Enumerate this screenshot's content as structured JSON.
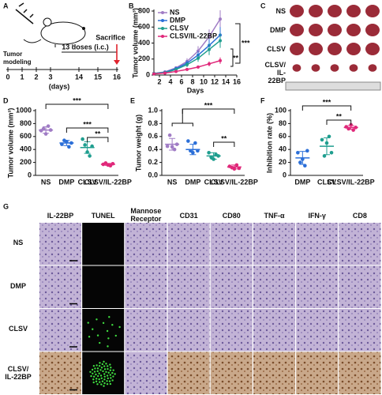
{
  "panels": {
    "A": "A",
    "C": "C",
    "G": "G"
  },
  "schematic": {
    "tumor_label": "Tumor\nmodeling",
    "days": [
      0,
      1,
      2,
      3,
      14,
      15,
      16
    ],
    "days_unit": "(days)",
    "doses": "13 doses (i.c.)",
    "end": "Sacrifice"
  },
  "photos": {
    "rows": [
      "NS",
      "DMP",
      "CLSV",
      "CLSV/\nIL-22BP"
    ]
  },
  "staining": {
    "columns": [
      "IL-22BP",
      "TUNEL",
      "Mannose\nReceptor",
      "CD31",
      "CD80",
      "TNF-α",
      "IFN-γ",
      "CD8"
    ],
    "rows": [
      "NS",
      "DMP",
      "CLSV",
      "CLSV/\nIL-22BP"
    ]
  },
  "chart_data": [
    {
      "type": "line",
      "panel": "B",
      "x_label": "Days",
      "y_label": "Tumor volume (mm³)",
      "x": [
        1,
        3,
        5,
        7,
        9,
        11,
        13
      ],
      "xlim": [
        1,
        16
      ],
      "xticks": [
        2,
        4,
        6,
        8,
        10,
        12,
        14,
        16
      ],
      "ylim": [
        0,
        800
      ],
      "yticks": [
        0,
        200,
        400,
        600,
        800
      ],
      "series": [
        {
          "name": "NS",
          "color": "#a07cc5",
          "values": [
            20,
            40,
            90,
            170,
            300,
            480,
            700
          ],
          "errors": [
            5,
            10,
            20,
            40,
            60,
            90,
            110
          ]
        },
        {
          "name": "DMP",
          "color": "#2b6fd8",
          "values": [
            20,
            35,
            80,
            150,
            250,
            370,
            500
          ],
          "errors": [
            5,
            10,
            20,
            35,
            50,
            80,
            100
          ]
        },
        {
          "name": "CLSV",
          "color": "#1f9e8f",
          "values": [
            20,
            30,
            70,
            130,
            210,
            320,
            430
          ],
          "errors": [
            5,
            8,
            15,
            30,
            45,
            70,
            90
          ]
        },
        {
          "name": "CLSV/IL-22BP",
          "color": "#e0287a",
          "values": [
            15,
            25,
            45,
            70,
            100,
            140,
            180
          ],
          "errors": [
            4,
            6,
            10,
            15,
            20,
            30,
            40
          ]
        }
      ],
      "annotations": [
        "***",
        "**"
      ]
    },
    {
      "type": "dot",
      "panel": "D",
      "y_label": "Tumor volume (mm³)",
      "categories": [
        "NS",
        "DMP",
        "CLSV",
        "CLSV/IL-22BP"
      ],
      "colors": [
        "#a07cc5",
        "#2b6fd8",
        "#1f9e8f",
        "#e0287a"
      ],
      "ylim": [
        0,
        1000
      ],
      "yticks": [
        0,
        200,
        400,
        600,
        800,
        1000
      ],
      "points": [
        [
          690,
          720,
          640,
          760,
          700
        ],
        [
          480,
          540,
          520,
          440,
          500
        ],
        [
          560,
          470,
          360,
          300,
          450
        ],
        [
          170,
          190,
          160,
          150,
          180
        ]
      ],
      "means": [
        700,
        500,
        430,
        170
      ],
      "sds": [
        50,
        40,
        90,
        15
      ],
      "annotations": [
        "***",
        "***",
        "**"
      ]
    },
    {
      "type": "dot",
      "panel": "E",
      "y_label": "Tumor weight (g)",
      "categories": [
        "NS",
        "DMP",
        "CLSV",
        "CLSV/IL-22BP"
      ],
      "colors": [
        "#a07cc5",
        "#2b6fd8",
        "#1f9e8f",
        "#e0287a"
      ],
      "ylim": [
        0,
        1
      ],
      "yticks": [
        {
          "value": 0,
          "label": "0.0"
        },
        0.2,
        0.4,
        0.6,
        0.8,
        {
          "value": 1,
          "label": "1.0"
        }
      ],
      "points": [
        [
          0.45,
          0.62,
          0.44,
          0.4,
          0.48
        ],
        [
          0.53,
          0.38,
          0.35,
          0.5,
          0.38
        ],
        [
          0.35,
          0.28,
          0.25,
          0.32,
          0.3
        ],
        [
          0.14,
          0.12,
          0.1,
          0.16,
          0.11
        ]
      ],
      "means": [
        0.48,
        0.4,
        0.3,
        0.13
      ],
      "sds": [
        0.09,
        0.08,
        0.05,
        0.03
      ],
      "annotations": [
        "***",
        "**"
      ]
    },
    {
      "type": "dot",
      "panel": "F",
      "y_label": "Inhibition rate (%)",
      "categories": [
        "DMP",
        "CLSV",
        "CLSV/IL-22BP"
      ],
      "colors": [
        "#2b6fd8",
        "#1f9e8f",
        "#e0287a"
      ],
      "ylim": [
        0,
        100
      ],
      "yticks": [
        0,
        20,
        40,
        60,
        80,
        100
      ],
      "points": [
        [
          35,
          20,
          25,
          15,
          38
        ],
        [
          55,
          30,
          50,
          60,
          35
        ],
        [
          75,
          72,
          78,
          70,
          74
        ]
      ],
      "means": [
        27,
        45,
        74
      ],
      "sds": [
        10,
        13,
        3
      ],
      "annotations": [
        "***",
        "**"
      ]
    }
  ]
}
